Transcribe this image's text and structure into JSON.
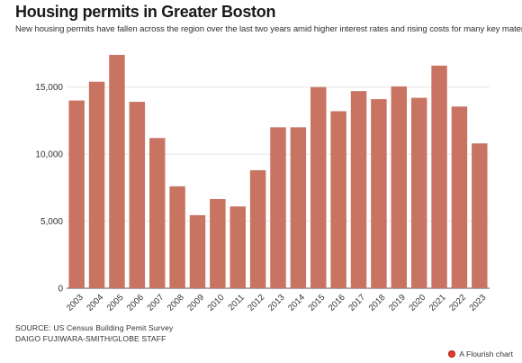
{
  "header": {
    "title": "Housing permits in Greater Boston",
    "subtitle": "New housing permits have fallen across the region over the last two years amid higher interest rates and rising costs for many key materials"
  },
  "footer": {
    "source": "SOURCE: US Census Building Pemit Survey",
    "credit": "DAIGO FUJIWARA-SMITH/GLOBE STAFF",
    "flourish_label": "A Flourish chart"
  },
  "colors": {
    "bar": "#c97362",
    "grid": "#e6e6e6",
    "axis": "#555555"
  },
  "chart_data": {
    "type": "bar",
    "title": "Housing permits in Greater Boston",
    "xlabel": "",
    "ylabel": "",
    "categories": [
      "2003",
      "2004",
      "2005",
      "2006",
      "2007",
      "2008",
      "2009",
      "2010",
      "2011",
      "2012",
      "2013",
      "2014",
      "2015",
      "2016",
      "2017",
      "2018",
      "2019",
      "2020",
      "2021",
      "2022",
      "2023"
    ],
    "values": [
      14000,
      15400,
      17400,
      13900,
      11200,
      7600,
      5450,
      6650,
      6100,
      8800,
      12000,
      12000,
      15000,
      13200,
      14700,
      14100,
      15050,
      14200,
      16600,
      13550,
      10800
    ],
    "ylim": [
      0,
      18000
    ],
    "yticks": [
      0,
      5000,
      10000,
      15000
    ],
    "ytick_labels": [
      "0",
      "5,000",
      "10,000",
      "15,000"
    ],
    "grid": true,
    "legend": "none"
  }
}
